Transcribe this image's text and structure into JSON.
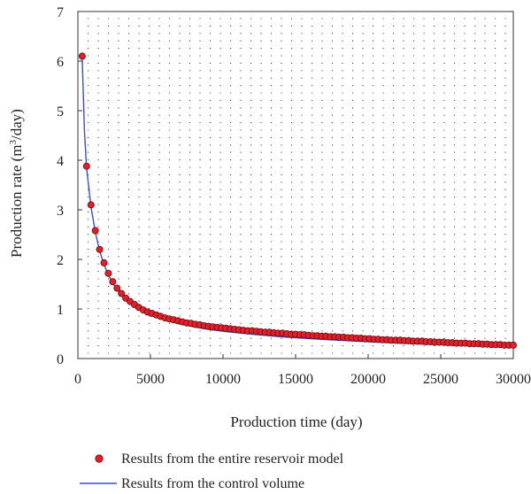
{
  "chart_data": {
    "type": "scatter",
    "title": "",
    "xlabel": "Production time (day)",
    "ylabel_main": "Production rate (m",
    "ylabel_sup": "3",
    "ylabel_tail": "/day)",
    "xlim": [
      0,
      30000
    ],
    "ylim": [
      0,
      7
    ],
    "x_ticks": [
      0,
      5000,
      10000,
      15000,
      20000,
      25000,
      30000
    ],
    "y_ticks": [
      0,
      1,
      2,
      3,
      4,
      5,
      6,
      7
    ],
    "grid": "dotted",
    "legend_position": "bottom",
    "colors": {
      "points_fill": "#e0202a",
      "points_stroke": "#6a0a10",
      "line": "#3a4fc4"
    },
    "series": [
      {
        "name": "Results from the entire reservoir model",
        "kind": "points",
        "x": [
          300,
          600,
          900,
          1200,
          1500,
          1800,
          2100,
          2400,
          2700,
          3000,
          3300,
          3600,
          3900,
          4200,
          4500,
          4800,
          5100,
          5400,
          5700,
          6000,
          6300,
          6600,
          6900,
          7200,
          7500,
          7800,
          8100,
          8400,
          8700,
          9000,
          9300,
          9600,
          9900,
          10200,
          10500,
          10800,
          11100,
          11400,
          11700,
          12000,
          12300,
          12600,
          12900,
          13200,
          13500,
          13800,
          14100,
          14400,
          14700,
          15000,
          15300,
          15600,
          15900,
          16200,
          16500,
          16800,
          17100,
          17400,
          17700,
          18000,
          18300,
          18600,
          18900,
          19200,
          19500,
          19800,
          20100,
          20400,
          20700,
          21000,
          21300,
          21600,
          21900,
          22200,
          22500,
          22800,
          23100,
          23400,
          23700,
          24000,
          24300,
          24600,
          24900,
          25200,
          25500,
          25800,
          26100,
          26400,
          26700,
          27000,
          27300,
          27600,
          27900,
          28200,
          28500,
          28800,
          29100,
          29400,
          29700,
          30000
        ],
        "y": [
          6.1,
          3.88,
          3.1,
          2.58,
          2.2,
          1.93,
          1.72,
          1.55,
          1.42,
          1.31,
          1.22,
          1.15,
          1.09,
          1.03,
          0.98,
          0.94,
          0.91,
          0.88,
          0.85,
          0.82,
          0.8,
          0.78,
          0.76,
          0.74,
          0.72,
          0.71,
          0.69,
          0.68,
          0.66,
          0.65,
          0.64,
          0.63,
          0.62,
          0.61,
          0.6,
          0.59,
          0.58,
          0.57,
          0.56,
          0.56,
          0.55,
          0.54,
          0.53,
          0.53,
          0.52,
          0.51,
          0.51,
          0.5,
          0.49,
          0.49,
          0.48,
          0.48,
          0.47,
          0.46,
          0.46,
          0.45,
          0.45,
          0.44,
          0.44,
          0.43,
          0.43,
          0.42,
          0.42,
          0.41,
          0.41,
          0.4,
          0.4,
          0.39,
          0.39,
          0.38,
          0.38,
          0.37,
          0.37,
          0.37,
          0.36,
          0.36,
          0.35,
          0.35,
          0.35,
          0.34,
          0.34,
          0.33,
          0.33,
          0.33,
          0.32,
          0.32,
          0.31,
          0.31,
          0.31,
          0.3,
          0.3,
          0.3,
          0.29,
          0.29,
          0.28,
          0.28,
          0.28,
          0.27,
          0.27,
          0.27
        ]
      },
      {
        "name": "Results from the control volume",
        "kind": "line",
        "x": [
          300,
          450,
          600,
          900,
          1200,
          1500,
          1800,
          2100,
          2400,
          3000,
          3600,
          4200,
          4800,
          5400,
          6000,
          7000,
          8000,
          9000,
          10000,
          12000,
          14000,
          16000,
          18000,
          20000,
          22000,
          24000,
          26000,
          28000,
          30000
        ],
        "y": [
          6.05,
          4.6,
          3.85,
          3.06,
          2.55,
          2.17,
          1.9,
          1.69,
          1.52,
          1.28,
          1.12,
          1.0,
          0.91,
          0.84,
          0.78,
          0.7,
          0.64,
          0.59,
          0.55,
          0.49,
          0.44,
          0.4,
          0.37,
          0.34,
          0.31,
          0.29,
          0.27,
          0.25,
          0.23
        ]
      }
    ]
  }
}
